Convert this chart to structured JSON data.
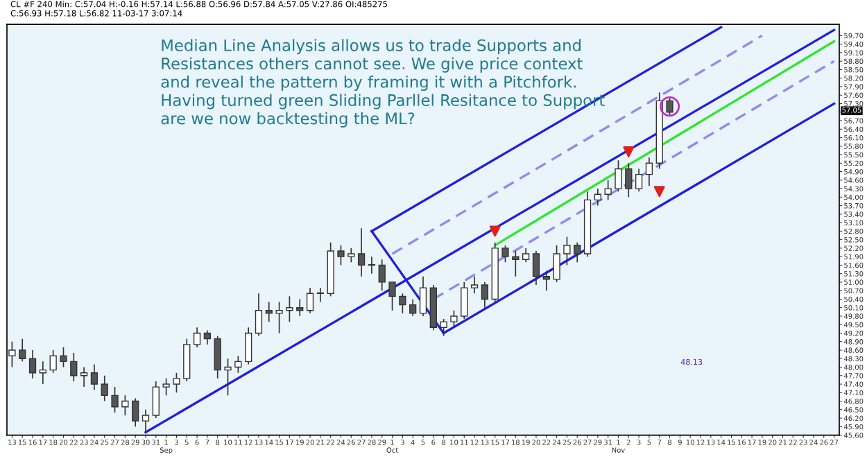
{
  "chart_data": {
    "type": "candlestick",
    "categories": [
      "13",
      "15",
      "16",
      "17",
      "18",
      "20",
      "22",
      "23",
      "24",
      "25",
      "27",
      "28",
      "29",
      "30",
      "31",
      "1\nSep",
      "3",
      "5",
      "6",
      "7",
      "8",
      "10",
      "11",
      "12",
      "13",
      "14",
      "15",
      "17",
      "19",
      "20",
      "21",
      "22",
      "24",
      "26",
      "27",
      "28",
      "29",
      "1\nOct",
      "3",
      "4",
      "5",
      "6",
      "8",
      "10",
      "11",
      "12",
      "13",
      "15",
      "17",
      "18",
      "19",
      "20",
      "22",
      "24",
      "25",
      "26",
      "27",
      "29",
      "31",
      "1\nNov",
      "2",
      "3",
      "5",
      "7",
      "8",
      "9",
      "10",
      "12",
      "13",
      "14",
      "15",
      "16",
      "17",
      "19",
      "20",
      "21",
      "22",
      "23",
      "24",
      "26",
      "27"
    ],
    "ohlc": [
      [
        48.4,
        48.9,
        48.0,
        48.6
      ],
      [
        48.6,
        49.0,
        48.2,
        48.3
      ],
      [
        48.3,
        48.6,
        47.6,
        47.8
      ],
      [
        47.8,
        48.2,
        47.4,
        47.9
      ],
      [
        47.9,
        48.6,
        47.8,
        48.4
      ],
      [
        48.4,
        48.7,
        48.0,
        48.2
      ],
      [
        48.2,
        48.5,
        47.5,
        47.7
      ],
      [
        47.7,
        48.0,
        47.3,
        47.8
      ],
      [
        47.8,
        48.1,
        47.2,
        47.4
      ],
      [
        47.4,
        47.7,
        46.8,
        47.0
      ],
      [
        47.0,
        47.3,
        46.4,
        46.6
      ],
      [
        46.6,
        47.0,
        46.3,
        46.8
      ],
      [
        46.8,
        46.9,
        45.9,
        46.1
      ],
      [
        46.1,
        46.5,
        45.7,
        46.3
      ],
      [
        46.3,
        47.5,
        46.2,
        47.3
      ],
      [
        47.3,
        47.6,
        47.0,
        47.4
      ],
      [
        47.4,
        47.8,
        47.1,
        47.6
      ],
      [
        47.6,
        49.0,
        47.5,
        48.8
      ],
      [
        48.8,
        49.4,
        48.7,
        49.2
      ],
      [
        49.2,
        49.3,
        48.8,
        49.0
      ],
      [
        49.0,
        49.1,
        47.6,
        47.9
      ],
      [
        47.9,
        48.3,
        47.0,
        48.0
      ],
      [
        48.0,
        48.4,
        47.8,
        48.2
      ],
      [
        48.2,
        49.4,
        48.1,
        49.2
      ],
      [
        49.2,
        50.6,
        49.1,
        50.0
      ],
      [
        50.0,
        50.3,
        49.6,
        49.9
      ],
      [
        49.9,
        50.3,
        49.2,
        50.0
      ],
      [
        50.0,
        50.5,
        49.6,
        50.1
      ],
      [
        50.1,
        50.4,
        49.8,
        50.0
      ],
      [
        50.0,
        50.8,
        49.9,
        50.6
      ],
      [
        50.6,
        50.8,
        50.3,
        50.6
      ],
      [
        50.6,
        52.4,
        50.5,
        52.1
      ],
      [
        52.1,
        52.3,
        51.6,
        51.9
      ],
      [
        51.9,
        52.2,
        51.7,
        52.0
      ],
      [
        52.0,
        52.9,
        51.2,
        51.6
      ],
      [
        51.6,
        51.9,
        51.3,
        51.6
      ],
      [
        51.6,
        51.8,
        50.7,
        51.0
      ],
      [
        51.0,
        51.0,
        50.0,
        50.5
      ],
      [
        50.5,
        50.6,
        49.9,
        50.2
      ],
      [
        50.2,
        50.4,
        49.8,
        49.9
      ],
      [
        49.9,
        51.2,
        49.8,
        50.8
      ],
      [
        50.8,
        50.9,
        49.3,
        49.4
      ],
      [
        49.4,
        49.7,
        49.1,
        49.6
      ],
      [
        49.6,
        50.0,
        49.4,
        49.8
      ],
      [
        49.8,
        51.0,
        49.7,
        50.8
      ],
      [
        50.8,
        51.2,
        50.6,
        50.9
      ],
      [
        50.9,
        51.0,
        50.1,
        50.4
      ],
      [
        50.4,
        52.4,
        50.3,
        52.2
      ],
      [
        52.2,
        52.3,
        51.7,
        51.9
      ],
      [
        51.9,
        52.1,
        51.2,
        51.8
      ],
      [
        51.8,
        52.2,
        51.7,
        52.0
      ],
      [
        52.0,
        52.1,
        50.9,
        51.2
      ],
      [
        51.2,
        51.4,
        50.7,
        51.1
      ],
      [
        51.1,
        52.3,
        51.0,
        52.0
      ],
      [
        52.0,
        52.6,
        51.6,
        52.3
      ],
      [
        52.3,
        52.4,
        51.7,
        52.0
      ],
      [
        52.0,
        54.2,
        51.9,
        53.9
      ],
      [
        53.9,
        54.3,
        53.7,
        54.1
      ],
      [
        54.1,
        54.6,
        53.9,
        54.3
      ],
      [
        54.3,
        55.3,
        54.2,
        55.0
      ],
      [
        55.0,
        55.2,
        54.0,
        54.3
      ],
      [
        54.3,
        55.0,
        54.2,
        54.8
      ],
      [
        54.8,
        55.4,
        54.4,
        55.2
      ],
      [
        55.2,
        57.7,
        55.0,
        57.4
      ],
      [
        57.4,
        57.5,
        56.9,
        57.0
      ],
      null,
      null,
      null,
      null,
      null,
      null,
      null,
      null,
      null,
      null,
      null,
      null,
      null,
      null,
      null,
      null
    ],
    "series": [
      {
        "type": "line",
        "color": "#1e1ee6",
        "values": [
          null,
          null,
          null,
          null,
          null,
          null,
          null,
          null,
          null,
          null,
          null,
          null,
          null,
          45.7,
          null,
          null,
          null,
          null,
          null,
          null,
          null,
          null,
          null,
          null,
          null,
          null,
          null,
          null,
          null,
          null,
          null,
          null,
          null,
          null,
          null,
          null,
          null,
          null,
          null,
          null,
          null,
          null,
          null,
          null,
          null,
          null,
          null,
          null,
          null,
          null,
          null,
          null,
          null,
          null,
          null,
          null,
          null,
          null,
          null,
          null,
          null,
          null,
          null,
          null,
          null,
          null,
          null,
          null,
          null,
          null,
          null,
          null,
          null,
          null,
          null,
          null,
          null,
          null,
          null,
          null,
          59.9
        ]
      },
      {
        "type": "line",
        "color": "#1e1ee6",
        "values": [
          null,
          null,
          null,
          null,
          null,
          null,
          null,
          null,
          null,
          null,
          null,
          null,
          null,
          null,
          null,
          null,
          null,
          null,
          null,
          null,
          null,
          null,
          null,
          null,
          null,
          null,
          null,
          null,
          null,
          null,
          null,
          null,
          null,
          null,
          null,
          52.8,
          null,
          null,
          null,
          null,
          null,
          null,
          null,
          null,
          null,
          null,
          null,
          null,
          null,
          null,
          null,
          null,
          null,
          null,
          null,
          null,
          null,
          null,
          null,
          null,
          null,
          null,
          null,
          null,
          null,
          null,
          null,
          null,
          null,
          60.0,
          null,
          null,
          null,
          null,
          null,
          null,
          null,
          null,
          null,
          null,
          null
        ]
      },
      {
        "type": "line",
        "color": "#8c8cf0",
        "line_style": "dashed",
        "values": [
          null,
          null,
          null,
          null,
          null,
          null,
          null,
          null,
          null,
          null,
          null,
          null,
          null,
          null,
          null,
          null,
          null,
          null,
          null,
          null,
          null,
          null,
          null,
          null,
          null,
          null,
          null,
          null,
          null,
          null,
          null,
          null,
          null,
          null,
          null,
          null,
          null,
          52.0,
          null,
          null,
          null,
          null,
          null,
          null,
          null,
          null,
          null,
          null,
          null,
          null,
          null,
          null,
          null,
          null,
          null,
          null,
          null,
          null,
          null,
          null,
          null,
          null,
          null,
          null,
          null,
          null,
          null,
          null,
          null,
          null,
          null,
          null,
          null,
          59.7,
          null,
          null,
          null,
          null,
          null,
          null,
          null
        ]
      },
      {
        "type": "line",
        "color": "#1e1ee6",
        "values": [
          null,
          null,
          null,
          null,
          null,
          null,
          null,
          null,
          null,
          null,
          null,
          null,
          null,
          null,
          null,
          null,
          null,
          null,
          null,
          null,
          null,
          null,
          null,
          null,
          null,
          null,
          null,
          null,
          null,
          null,
          null,
          null,
          null,
          null,
          null,
          52.8,
          null,
          null,
          null,
          null,
          null,
          null,
          49.2,
          null,
          null,
          null,
          null,
          null,
          null,
          null,
          null,
          null,
          null,
          null,
          null,
          null,
          null,
          null,
          null,
          null,
          null,
          null,
          null,
          null,
          null,
          null,
          null,
          null,
          null,
          null,
          null,
          null,
          null,
          null,
          null,
          null,
          null,
          null,
          null,
          null,
          null
        ]
      },
      {
        "type": "line",
        "color": "#2ee62e",
        "values": [
          null,
          null,
          null,
          null,
          null,
          null,
          null,
          null,
          null,
          null,
          null,
          null,
          null,
          null,
          null,
          null,
          null,
          null,
          null,
          null,
          null,
          null,
          null,
          null,
          null,
          null,
          null,
          null,
          null,
          null,
          null,
          null,
          null,
          null,
          null,
          null,
          null,
          null,
          null,
          null,
          null,
          null,
          null,
          null,
          null,
          null,
          null,
          52.3,
          null,
          null,
          null,
          null,
          null,
          null,
          null,
          null,
          null,
          null,
          null,
          null,
          null,
          null,
          null,
          null,
          null,
          null,
          null,
          null,
          null,
          null,
          null,
          null,
          null,
          null,
          null,
          null,
          null,
          null,
          null,
          null,
          59.5
        ]
      },
      {
        "type": "line",
        "color": "#8c8cf0",
        "line_style": "dashed",
        "values": [
          null,
          null,
          null,
          null,
          null,
          null,
          null,
          null,
          null,
          null,
          null,
          null,
          null,
          null,
          null,
          null,
          null,
          null,
          null,
          null,
          null,
          null,
          null,
          null,
          null,
          null,
          null,
          null,
          null,
          null,
          null,
          null,
          null,
          null,
          null,
          null,
          null,
          null,
          null,
          null,
          null,
          50.4,
          null,
          null,
          null,
          null,
          null,
          null,
          null,
          null,
          null,
          null,
          null,
          null,
          null,
          null,
          null,
          null,
          null,
          null,
          null,
          null,
          null,
          null,
          null,
          null,
          null,
          null,
          null,
          null,
          null,
          null,
          null,
          null,
          null,
          null,
          null,
          null,
          null,
          null,
          58.8
        ]
      },
      {
        "type": "line",
        "color": "#1e1ee6",
        "values": [
          null,
          null,
          null,
          null,
          null,
          null,
          null,
          null,
          null,
          null,
          null,
          null,
          null,
          null,
          null,
          null,
          null,
          null,
          null,
          null,
          null,
          null,
          null,
          null,
          null,
          null,
          null,
          null,
          null,
          null,
          null,
          null,
          null,
          null,
          null,
          null,
          null,
          null,
          null,
          null,
          null,
          null,
          49.2,
          null,
          null,
          null,
          null,
          null,
          null,
          null,
          null,
          null,
          null,
          null,
          null,
          null,
          null,
          null,
          null,
          null,
          null,
          null,
          null,
          null,
          null,
          null,
          null,
          null,
          null,
          null,
          null,
          null,
          null,
          null,
          null,
          null,
          null,
          null,
          null,
          null,
          57.3
        ]
      },
      {
        "type": "scatter",
        "color": "#e0201a",
        "marker": "triangle",
        "values": [
          null,
          null,
          null,
          null,
          null,
          null,
          null,
          null,
          null,
          null,
          null,
          null,
          null,
          null,
          null,
          null,
          null,
          null,
          null,
          null,
          null,
          null,
          null,
          null,
          null,
          null,
          null,
          null,
          null,
          null,
          null,
          null,
          null,
          null,
          null,
          null,
          null,
          null,
          null,
          null,
          null,
          null,
          null,
          null,
          null,
          null,
          null,
          52.8,
          null,
          null,
          null,
          null,
          null,
          null,
          null,
          null,
          null,
          null,
          null,
          null,
          55.6,
          null,
          null,
          54.2,
          null,
          null,
          null,
          null,
          null,
          null,
          null,
          null,
          null,
          null,
          null,
          null,
          null,
          null,
          null,
          null,
          null
        ]
      },
      {
        "type": "scatter",
        "color": "#c030c0",
        "marker": "circle",
        "values": [
          null,
          null,
          null,
          null,
          null,
          null,
          null,
          null,
          null,
          null,
          null,
          null,
          null,
          null,
          null,
          null,
          null,
          null,
          null,
          null,
          null,
          null,
          null,
          null,
          null,
          null,
          null,
          null,
          null,
          null,
          null,
          null,
          null,
          null,
          null,
          null,
          null,
          null,
          null,
          null,
          null,
          null,
          null,
          null,
          null,
          null,
          null,
          null,
          null,
          null,
          null,
          null,
          null,
          null,
          null,
          null,
          null,
          null,
          null,
          null,
          null,
          null,
          null,
          null,
          57.2,
          null,
          null,
          null,
          null,
          null,
          null,
          null,
          null,
          null,
          null,
          null,
          null,
          null,
          null,
          null,
          null
        ]
      }
    ],
    "ylim": [
      45.6,
      60.1
    ],
    "yticks": [
      {
        "value": 45.6,
        "label": "45.60"
      },
      {
        "value": 45.9,
        "label": "45.90"
      },
      {
        "value": 46.2,
        "label": "46.20"
      },
      {
        "value": 46.5,
        "label": "46.50"
      },
      {
        "value": 46.8,
        "label": "46.80"
      },
      {
        "value": 47.1,
        "label": "47.10"
      },
      {
        "value": 47.4,
        "label": "47.40"
      },
      {
        "value": 47.7,
        "label": "47.70"
      },
      {
        "value": 48.0,
        "label": "48.00"
      },
      {
        "value": 48.3,
        "label": "48.30"
      },
      {
        "value": 48.6,
        "label": "48.60"
      },
      {
        "value": 48.9,
        "label": "48.90"
      },
      {
        "value": 49.2,
        "label": "49.20"
      },
      {
        "value": 49.5,
        "label": "49.50"
      },
      {
        "value": 49.8,
        "label": "49.80"
      },
      {
        "value": 50.1,
        "label": "50.10"
      },
      {
        "value": 50.4,
        "label": "50.40"
      },
      {
        "value": 50.7,
        "label": "50.70"
      },
      {
        "value": 51.0,
        "label": "51.00"
      },
      {
        "value": 51.3,
        "label": "51.30"
      },
      {
        "value": 51.6,
        "label": "51.60"
      },
      {
        "value": 51.9,
        "label": "51.90"
      },
      {
        "value": 52.2,
        "label": "52.20"
      },
      {
        "value": 52.5,
        "label": "52.50"
      },
      {
        "value": 52.8,
        "label": "52.80"
      },
      {
        "value": 53.1,
        "label": "53.10"
      },
      {
        "value": 53.4,
        "label": "53.40"
      },
      {
        "value": 53.7,
        "label": "53.70"
      },
      {
        "value": 54.0,
        "label": "54.00"
      },
      {
        "value": 54.3,
        "label": "54.30"
      },
      {
        "value": 54.6,
        "label": "54.60"
      },
      {
        "value": 54.9,
        "label": "54.90"
      },
      {
        "value": 55.2,
        "label": "55.20"
      },
      {
        "value": 55.5,
        "label": "55.50"
      },
      {
        "value": 55.8,
        "label": "55.80"
      },
      {
        "value": 56.1,
        "label": "56.10"
      },
      {
        "value": 56.4,
        "label": "56.40"
      },
      {
        "value": 56.7,
        "label": "56.70"
      },
      {
        "value": 57.0,
        "label": null
      },
      {
        "value": 57.3,
        "label": "57.30"
      },
      {
        "value": 57.6,
        "label": "57.60"
      },
      {
        "value": 57.9,
        "label": "57.90"
      },
      {
        "value": 58.2,
        "label": "58.20"
      },
      {
        "value": 58.5,
        "label": "58.50"
      },
      {
        "value": 58.8,
        "label": "58.80"
      },
      {
        "value": 59.1,
        "label": "59.10"
      },
      {
        "value": 59.4,
        "label": "59.40"
      },
      {
        "value": 59.7,
        "label": "59.70"
      }
    ],
    "annotations": [
      "CL #F 240 Min: C:57.04 H:-0.16 H:57.14 L:56.88 O:56.96 D:57.84 A:57.05 V:27.86 OI:485275",
      "C:56.93 H:57.18 L:56.82 11-03-17 3:07:14",
      "Median Line Analysis allows us to trade Supports and\nResistances others cannot see. We give price context\nand reveal the pattern by framing it with a Pitchfork.\nHaving turned green Sliding Parllel Resitance to Support\nare we now backtesting the ML?",
      "48.13",
      {
        "text": "57.05",
        "y": 57.05
      }
    ],
    "grid": false
  }
}
